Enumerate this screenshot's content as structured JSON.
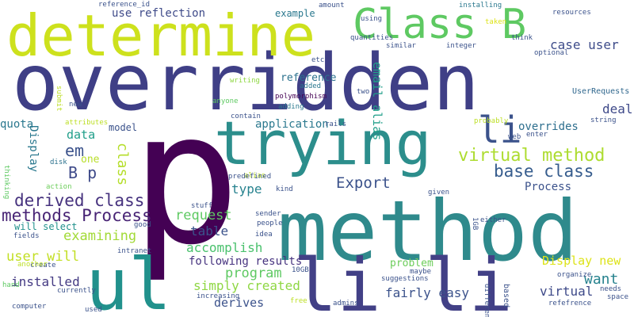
{
  "words": [
    {
      "text": "p",
      "color": "#440154"
    },
    {
      "text": "overridden",
      "color": "#3f3f86"
    },
    {
      "text": "method",
      "color": "#2f8a8c"
    },
    {
      "text": "determine",
      "color": "#cde11d"
    },
    {
      "text": "li li",
      "color": "#424086"
    },
    {
      "text": "trying",
      "color": "#2c8e8c"
    },
    {
      "text": "ul",
      "color": "#21918c"
    },
    {
      "text": "Class B",
      "color": "#5ec962"
    },
    {
      "text": "li",
      "color": "#3b528b"
    },
    {
      "text": "virtual method",
      "color": "#addc30"
    },
    {
      "text": "methods Process",
      "color": "#482475"
    },
    {
      "text": "derived class",
      "color": "#46327e"
    },
    {
      "text": "base class",
      "color": "#365c8d"
    },
    {
      "text": "Export",
      "color": "#3b528b"
    },
    {
      "text": "em",
      "color": "#3b528b"
    },
    {
      "text": "B p",
      "color": "#3e4a89"
    },
    {
      "text": "examining",
      "color": "#a2da37"
    },
    {
      "text": "request",
      "color": "#5ec962"
    },
    {
      "text": "user will",
      "color": "#c2df23"
    },
    {
      "text": "accomplish",
      "color": "#4ac16d"
    },
    {
      "text": "program",
      "color": "#5ec962"
    },
    {
      "text": "following results",
      "color": "#46337f"
    },
    {
      "text": "simply created",
      "color": "#8fd744"
    },
    {
      "text": "case user",
      "color": "#3e4c8a"
    },
    {
      "text": "Display new",
      "color": "#dde318"
    },
    {
      "text": "overrides",
      "color": "#2e6f8e"
    },
    {
      "text": "fairly easy",
      "color": "#3b528b"
    },
    {
      "text": "want",
      "color": "#26828e"
    },
    {
      "text": "virtual",
      "color": "#3e4a89"
    },
    {
      "text": "installed",
      "color": "#443a83"
    },
    {
      "text": "class",
      "color": "#b5de2b"
    },
    {
      "text": "deal",
      "color": "#3e4989"
    },
    {
      "text": "table",
      "color": "#3b528b"
    },
    {
      "text": "type",
      "color": "#26828e"
    },
    {
      "text": "data",
      "color": "#1f9e89"
    },
    {
      "text": "derives",
      "color": "#3b528b"
    },
    {
      "text": "Process",
      "color": "#3b528b"
    },
    {
      "text": "use reflection",
      "color": "#3e4a89"
    },
    {
      "text": "application",
      "color": "#2a788e"
    },
    {
      "text": "email alias",
      "color": "#1f9e89"
    },
    {
      "text": "quota",
      "color": "#2a788e"
    },
    {
      "text": "Display",
      "color": "#2a788e"
    },
    {
      "text": "reference",
      "color": "#2c728e"
    },
    {
      "text": "model",
      "color": "#3b528b"
    },
    {
      "text": "problem",
      "color": "#6ccd5a"
    },
    {
      "text": "one",
      "color": "#b8de29"
    },
    {
      "text": "example",
      "color": "#2a788e"
    },
    {
      "text": "will select",
      "color": "#21918c"
    },
    {
      "text": "reference_id",
      "color": "#3b528b"
    },
    {
      "text": "amount",
      "color": "#3b528b"
    },
    {
      "text": "installing",
      "color": "#2a788e"
    },
    {
      "text": "resources",
      "color": "#3b528b"
    },
    {
      "text": "taken",
      "color": "#dde318"
    },
    {
      "text": "think",
      "color": "#3b528b"
    },
    {
      "text": "using",
      "color": "#3b528b"
    },
    {
      "text": "quantities",
      "color": "#3b528b"
    },
    {
      "text": "similar",
      "color": "#3b528b"
    },
    {
      "text": "integer",
      "color": "#3b528b"
    },
    {
      "text": "optional",
      "color": "#3b528b"
    },
    {
      "text": "etc",
      "color": "#3b528b"
    },
    {
      "text": "submit",
      "color": "#bddf26"
    },
    {
      "text": "writing",
      "color": "#8fd744"
    },
    {
      "text": "added",
      "color": "#2a788e"
    },
    {
      "text": "polymorphism",
      "color": "#440154"
    },
    {
      "text": "adding",
      "color": "#2a788e"
    },
    {
      "text": "two",
      "color": "#3b528b"
    },
    {
      "text": "anyone",
      "color": "#5ec962"
    },
    {
      "text": "contain",
      "color": "#3b528b"
    },
    {
      "text": "UserRequests",
      "color": "#31688e"
    },
    {
      "text": "new",
      "color": "#3b528b"
    },
    {
      "text": "attributes",
      "color": "#bddf26"
    },
    {
      "text": "string",
      "color": "#3b528b"
    },
    {
      "text": "probably",
      "color": "#bddf26"
    },
    {
      "text": "enter",
      "color": "#3b528b"
    },
    {
      "text": "web",
      "color": "#3b528b"
    },
    {
      "text": "rails",
      "color": "#3b528b"
    },
    {
      "text": "disk",
      "color": "#2c728e"
    },
    {
      "text": "thinking",
      "color": "#5ec962"
    },
    {
      "text": "alias",
      "color": "#bddf26"
    },
    {
      "text": "predefined",
      "color": "#3b528b"
    },
    {
      "text": "action",
      "color": "#6ccd5a"
    },
    {
      "text": "kind",
      "color": "#3b528b"
    },
    {
      "text": "given",
      "color": "#3b528b"
    },
    {
      "text": "stuff",
      "color": "#3b528b"
    },
    {
      "text": "sender",
      "color": "#3b528b"
    },
    {
      "text": "people",
      "color": "#3b528b"
    },
    {
      "text": "good",
      "color": "#3b528b"
    },
    {
      "text": "fields",
      "color": "#3b528b"
    },
    {
      "text": "idea",
      "color": "#3b528b"
    },
    {
      "text": "either",
      "color": "#3b528b"
    },
    {
      "text": "1GB",
      "color": "#3b528b"
    },
    {
      "text": "intranet",
      "color": "#3b528b"
    },
    {
      "text": "create",
      "color": "#3b528b"
    },
    {
      "text": "10GB",
      "color": "#3b528b"
    },
    {
      "text": "another",
      "color": "#bddf26"
    },
    {
      "text": "hand",
      "color": "#5ec962"
    },
    {
      "text": "maybe",
      "color": "#3b528b"
    },
    {
      "text": "suggestions",
      "color": "#3b528b"
    },
    {
      "text": "currently",
      "color": "#3b528b"
    },
    {
      "text": "increasing",
      "color": "#3b528b"
    },
    {
      "text": "based",
      "color": "#3b528b"
    },
    {
      "text": "different",
      "color": "#3b528b"
    },
    {
      "text": "organize",
      "color": "#3b528b"
    },
    {
      "text": "needs",
      "color": "#3b528b"
    },
    {
      "text": "space",
      "color": "#3b528b"
    },
    {
      "text": "computer",
      "color": "#3b528b"
    },
    {
      "text": "used",
      "color": "#3b528b"
    },
    {
      "text": "free",
      "color": "#bddf26"
    },
    {
      "text": "admins",
      "color": "#3b528b"
    },
    {
      "text": "refefrence",
      "color": "#3b528b"
    }
  ]
}
